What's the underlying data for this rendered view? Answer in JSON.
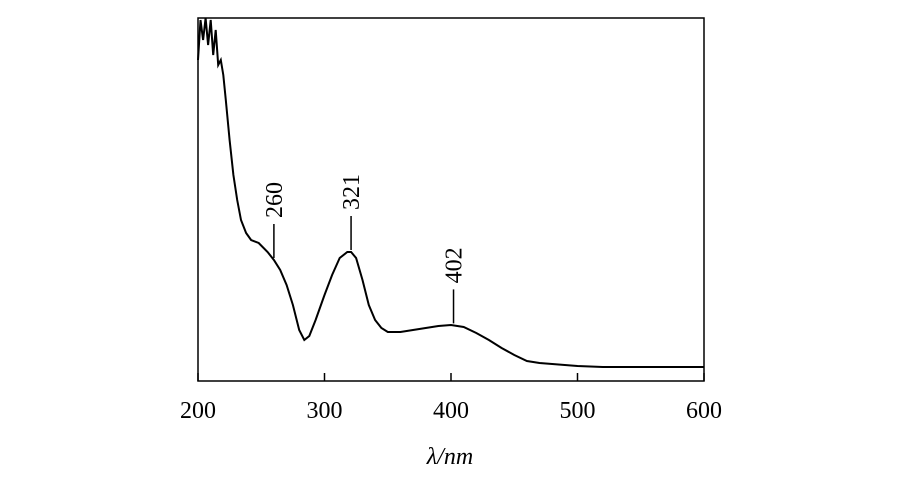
{
  "chart_data": {
    "type": "line",
    "x_label": "λ/nm",
    "x": [
      200,
      202,
      204,
      206,
      208,
      210,
      212,
      214,
      216,
      218,
      220,
      222,
      225,
      228,
      231,
      234,
      238,
      242,
      248,
      255,
      260,
      265,
      270,
      275,
      280,
      284,
      288,
      293,
      300,
      306,
      312,
      318,
      321,
      325,
      330,
      335,
      340,
      345,
      350,
      360,
      370,
      380,
      390,
      400,
      410,
      420,
      430,
      440,
      450,
      460,
      470,
      480,
      490,
      500,
      520,
      600
    ],
    "series": [
      {
        "color": "#000000",
        "values": [
          321,
          361,
          341,
          363,
          336,
          361,
          326,
          351,
          316,
          321,
          306,
          281,
          241,
          206,
          181,
          161,
          148,
          141,
          138,
          129,
          121,
          111,
          96,
          76,
          51,
          41,
          45,
          61,
          86,
          106,
          123,
          129,
          129,
          123,
          101,
          76,
          61,
          53,
          49,
          49,
          51,
          53,
          55,
          56,
          54,
          48,
          41,
          33,
          26,
          20,
          18,
          17,
          16,
          15,
          14,
          14
        ]
      }
    ],
    "xlim": [
      200,
      600
    ],
    "xticks": [
      200,
      300,
      400,
      500,
      600
    ],
    "ylim": [
      0,
      363
    ],
    "annotations": [
      260,
      321,
      402
    ]
  }
}
